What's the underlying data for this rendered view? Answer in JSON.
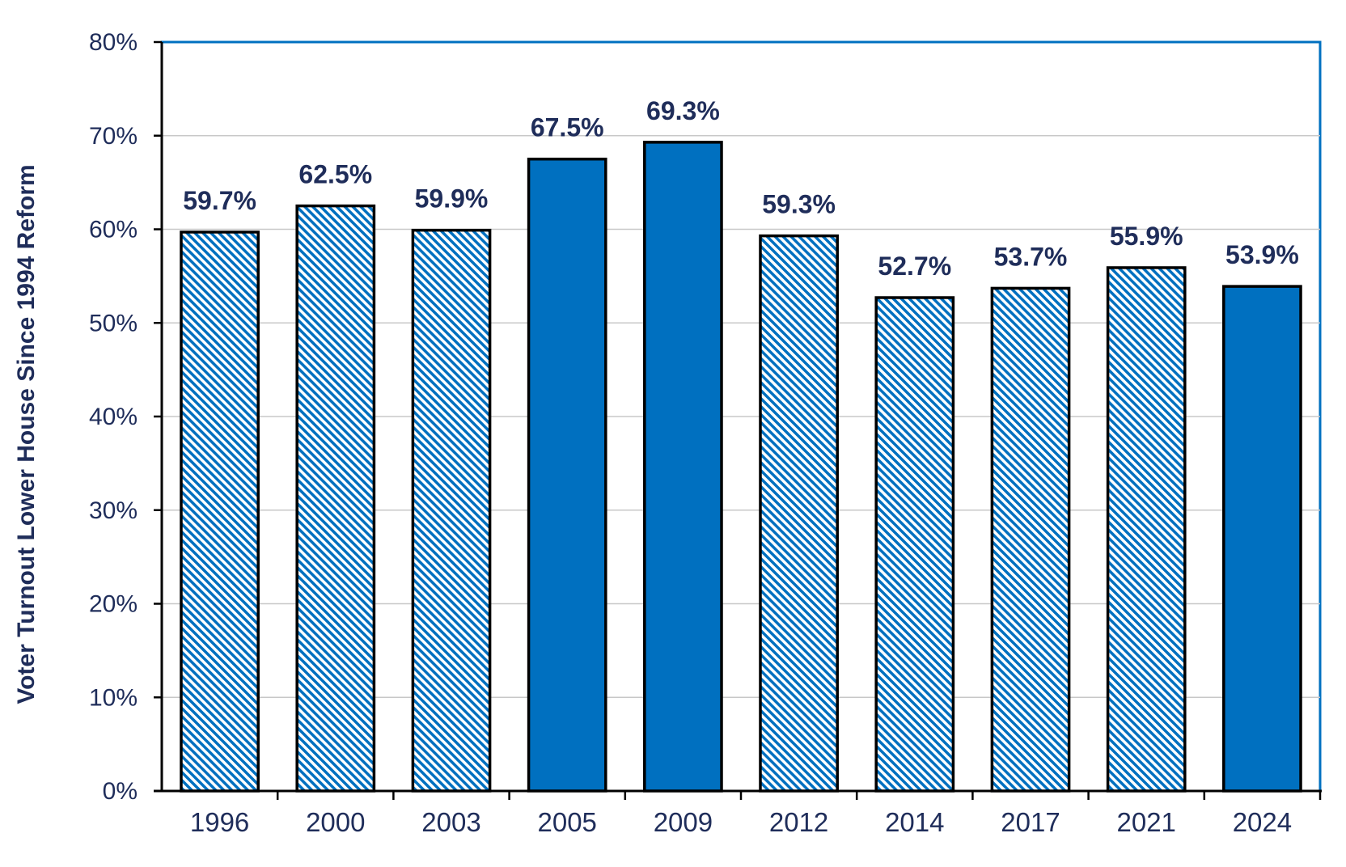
{
  "colors": {
    "accent": "#0070c0",
    "text": "#1f2d5a",
    "grid": "#c8c8c8",
    "frame": "#0070c0",
    "bar_outline": "#000000",
    "hatch_background": "#ffffff"
  },
  "chart_data": {
    "type": "bar",
    "title": "",
    "xlabel": "",
    "ylabel": "Voter Turnout Lower House Since 1994 Reform",
    "ylim": [
      0,
      80
    ],
    "y_ticks": [
      0,
      10,
      20,
      30,
      40,
      50,
      60,
      70,
      80
    ],
    "y_tick_labels": [
      "0%",
      "10%",
      "20%",
      "30%",
      "40%",
      "50%",
      "60%",
      "70%",
      "80%"
    ],
    "grid": true,
    "legend": "none",
    "categories": [
      "1996",
      "2000",
      "2003",
      "2005",
      "2009",
      "2012",
      "2014",
      "2017",
      "2021",
      "2024"
    ],
    "values": [
      59.7,
      62.5,
      59.9,
      67.5,
      69.3,
      59.3,
      52.7,
      53.7,
      55.9,
      53.9
    ],
    "data_labels": [
      "59.7%",
      "62.5%",
      "59.9%",
      "67.5%",
      "69.3%",
      "59.3%",
      "52.7%",
      "53.7%",
      "55.9%",
      "53.9%"
    ],
    "bar_fill": [
      "hatched",
      "hatched",
      "hatched",
      "solid",
      "solid",
      "hatched",
      "hatched",
      "hatched",
      "hatched",
      "solid"
    ]
  }
}
